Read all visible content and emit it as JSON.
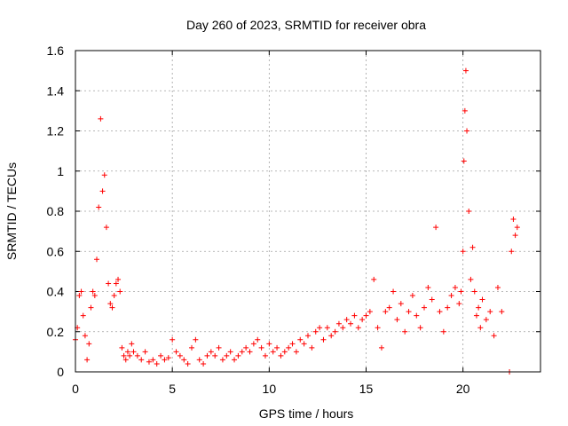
{
  "chart_data": {
    "type": "scatter",
    "title": "Day 260 of 2023, SRMTID for receiver obra",
    "xlabel": "GPS time / hours",
    "ylabel": "SRMTID / TECUs",
    "xlim": [
      0,
      24
    ],
    "ylim": [
      0,
      1.6
    ],
    "xticks": [
      0,
      5,
      10,
      15,
      20
    ],
    "xtick_labels": [
      "0",
      "5",
      "10",
      "15",
      "20"
    ],
    "yticks": [
      0,
      0.2,
      0.4,
      0.6,
      0.8,
      1.0,
      1.2,
      1.4,
      1.6
    ],
    "ytick_labels": [
      "0",
      "0.2",
      "0.4",
      "0.6",
      "0.8",
      "1",
      "1.2",
      "1.4",
      "1.6"
    ],
    "grid": true,
    "marker": "+",
    "marker_color": "#ff0000",
    "series": [
      {
        "name": "SRMTID",
        "x": [
          0.0,
          0.1,
          0.2,
          0.3,
          0.4,
          0.5,
          0.6,
          0.7,
          0.8,
          0.9,
          1.0,
          1.1,
          1.2,
          1.3,
          1.4,
          1.5,
          1.6,
          1.7,
          1.8,
          1.9,
          2.0,
          2.1,
          2.2,
          2.3,
          2.4,
          2.5,
          2.6,
          2.7,
          2.8,
          2.9,
          3.0,
          3.2,
          3.4,
          3.6,
          3.8,
          4.0,
          4.2,
          4.4,
          4.6,
          4.8,
          5.0,
          5.2,
          5.4,
          5.6,
          5.8,
          6.0,
          6.2,
          6.4,
          6.6,
          6.8,
          7.0,
          7.2,
          7.4,
          7.6,
          7.8,
          8.0,
          8.2,
          8.4,
          8.6,
          8.8,
          9.0,
          9.2,
          9.4,
          9.6,
          9.8,
          10.0,
          10.2,
          10.4,
          10.6,
          10.8,
          11.0,
          11.2,
          11.4,
          11.6,
          11.8,
          12.0,
          12.2,
          12.4,
          12.6,
          12.8,
          13.0,
          13.2,
          13.4,
          13.6,
          13.8,
          14.0,
          14.2,
          14.4,
          14.6,
          14.8,
          15.0,
          15.2,
          15.4,
          15.6,
          15.8,
          16.0,
          16.2,
          16.4,
          16.6,
          16.8,
          17.0,
          17.2,
          17.4,
          17.6,
          17.8,
          18.0,
          18.2,
          18.4,
          18.6,
          18.8,
          19.0,
          19.2,
          19.4,
          19.6,
          19.8,
          19.9,
          20.0,
          20.05,
          20.1,
          20.15,
          20.2,
          20.3,
          20.4,
          20.5,
          20.6,
          20.7,
          20.8,
          20.9,
          21.0,
          21.2,
          21.4,
          21.6,
          21.8,
          22.0,
          22.4,
          22.5,
          22.6,
          22.7,
          22.8
        ],
        "y": [
          0.16,
          0.22,
          0.38,
          0.4,
          0.28,
          0.18,
          0.06,
          0.14,
          0.32,
          0.4,
          0.38,
          0.56,
          0.82,
          1.26,
          0.9,
          0.98,
          0.72,
          0.44,
          0.34,
          0.32,
          0.38,
          0.44,
          0.46,
          0.4,
          0.12,
          0.08,
          0.06,
          0.1,
          0.08,
          0.14,
          0.1,
          0.08,
          0.06,
          0.1,
          0.05,
          0.06,
          0.04,
          0.08,
          0.06,
          0.07,
          0.16,
          0.1,
          0.08,
          0.06,
          0.04,
          0.12,
          0.16,
          0.06,
          0.04,
          0.08,
          0.1,
          0.08,
          0.12,
          0.06,
          0.08,
          0.1,
          0.06,
          0.08,
          0.1,
          0.12,
          0.1,
          0.14,
          0.16,
          0.12,
          0.08,
          0.14,
          0.1,
          0.12,
          0.08,
          0.1,
          0.12,
          0.14,
          0.1,
          0.16,
          0.14,
          0.18,
          0.12,
          0.2,
          0.22,
          0.16,
          0.22,
          0.18,
          0.2,
          0.24,
          0.22,
          0.26,
          0.24,
          0.28,
          0.22,
          0.26,
          0.28,
          0.3,
          0.46,
          0.22,
          0.12,
          0.3,
          0.32,
          0.4,
          0.26,
          0.34,
          0.2,
          0.3,
          0.38,
          0.28,
          0.22,
          0.32,
          0.42,
          0.36,
          0.72,
          0.3,
          0.2,
          0.32,
          0.38,
          0.42,
          0.34,
          0.4,
          0.6,
          1.05,
          1.3,
          1.5,
          1.2,
          0.8,
          0.46,
          0.62,
          0.4,
          0.28,
          0.32,
          0.22,
          0.36,
          0.26,
          0.3,
          0.18,
          0.42,
          0.3,
          0.0,
          0.6,
          0.76,
          0.68,
          0.72
        ]
      }
    ]
  }
}
